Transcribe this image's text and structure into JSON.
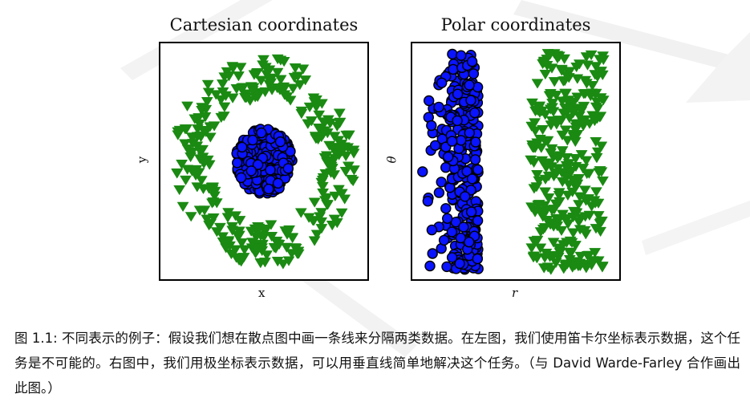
{
  "figure": {
    "panels": [
      {
        "title": "Cartesian coordinates",
        "xlabel": "x",
        "ylabel": "y"
      },
      {
        "title": "Polar coordinates",
        "xlabel": "r",
        "ylabel": "θ"
      }
    ],
    "caption": "图 1.1: 不同表示的例子：假设我们想在散点图中画一条线来分隔两类数据。在左图，我们使用笛卡尔坐标表示数据，这个任务是不可能的。右图中，我们用极坐标表示数据，可以用垂直线简单地解决这个任务。（与 David Warde-Farley 合作画出此图。）",
    "colors": {
      "class_a": "#0a14ff",
      "class_b": "#1a8a12",
      "watermark": "#eeeeee"
    }
  },
  "chart_data": [
    {
      "type": "scatter",
      "title": "Cartesian coordinates",
      "xlabel": "x",
      "ylabel": "y",
      "xlim": [
        -1,
        1
      ],
      "ylim": [
        -1,
        1
      ],
      "series": [
        {
          "name": "inner class (blue circles)",
          "marker": "circle",
          "distribution": "disk",
          "r_range": [
            0.0,
            0.3
          ],
          "count": 300
        },
        {
          "name": "outer class (green triangles)",
          "marker": "triangle-down",
          "distribution": "ring",
          "r_range": [
            0.58,
            0.97
          ],
          "count": 300
        }
      ]
    },
    {
      "type": "scatter",
      "title": "Polar coordinates",
      "xlabel": "r",
      "ylabel": "θ",
      "xlim": [
        0,
        1
      ],
      "ylim": [
        0,
        6.2832
      ],
      "series": [
        {
          "name": "inner class (blue circles)",
          "marker": "circle",
          "r_range": [
            0.0,
            0.3
          ],
          "count": 300
        },
        {
          "name": "outer class (green triangles)",
          "marker": "triangle-down",
          "r_range": [
            0.58,
            0.97
          ],
          "count": 300
        }
      ]
    }
  ]
}
